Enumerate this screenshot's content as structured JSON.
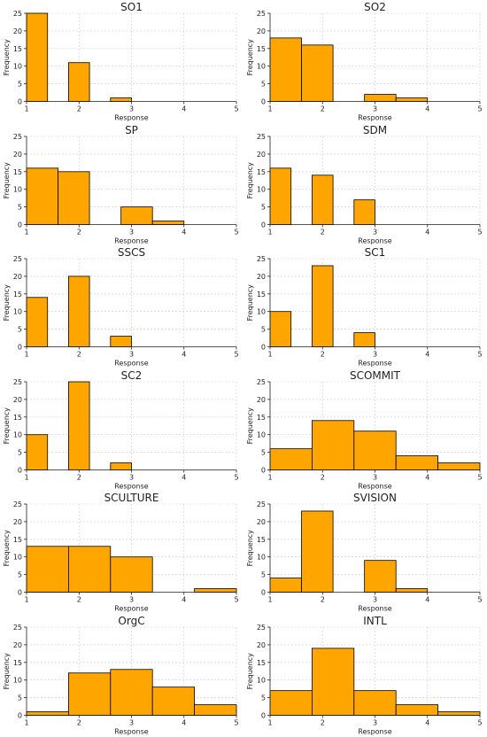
{
  "colors": {
    "bar_fill": "#FFA500",
    "bar_edge": "#000000"
  },
  "chart_data": [
    {
      "type": "bar",
      "title": "SO1",
      "xlabel": "Response",
      "ylabel": "Frequency",
      "xlim": [
        1,
        5
      ],
      "ylim": [
        0,
        25
      ],
      "xticks": [
        1,
        2,
        3,
        4,
        5
      ],
      "yticks": [
        0,
        5,
        10,
        15,
        20,
        25
      ],
      "grid": true,
      "bins": [
        {
          "x0": 1.0,
          "x1": 1.4,
          "value": 25
        },
        {
          "x0": 1.8,
          "x1": 2.2,
          "value": 11
        },
        {
          "x0": 2.6,
          "x1": 3.0,
          "value": 1
        }
      ]
    },
    {
      "type": "bar",
      "title": "SO2",
      "xlabel": "Response",
      "ylabel": "Frequency",
      "xlim": [
        1,
        5
      ],
      "ylim": [
        0,
        25
      ],
      "xticks": [
        1,
        2,
        3,
        4,
        5
      ],
      "yticks": [
        0,
        5,
        10,
        15,
        20,
        25
      ],
      "grid": true,
      "bins": [
        {
          "x0": 1.0,
          "x1": 1.6,
          "value": 18
        },
        {
          "x0": 1.6,
          "x1": 2.2,
          "value": 16
        },
        {
          "x0": 2.8,
          "x1": 3.4,
          "value": 2
        },
        {
          "x0": 3.4,
          "x1": 4.0,
          "value": 1
        }
      ]
    },
    {
      "type": "bar",
      "title": "SP",
      "xlabel": "Response",
      "ylabel": "Frequency",
      "xlim": [
        1,
        5
      ],
      "ylim": [
        0,
        25
      ],
      "xticks": [
        1,
        2,
        3,
        4,
        5
      ],
      "yticks": [
        0,
        5,
        10,
        15,
        20,
        25
      ],
      "grid": true,
      "bins": [
        {
          "x0": 1.0,
          "x1": 1.6,
          "value": 16
        },
        {
          "x0": 1.6,
          "x1": 2.2,
          "value": 15
        },
        {
          "x0": 2.8,
          "x1": 3.4,
          "value": 5
        },
        {
          "x0": 3.4,
          "x1": 4.0,
          "value": 1
        }
      ]
    },
    {
      "type": "bar",
      "title": "SDM",
      "xlabel": "Response",
      "ylabel": "Frequency",
      "xlim": [
        1,
        5
      ],
      "ylim": [
        0,
        25
      ],
      "xticks": [
        1,
        2,
        3,
        4,
        5
      ],
      "yticks": [
        0,
        5,
        10,
        15,
        20,
        25
      ],
      "grid": true,
      "bins": [
        {
          "x0": 1.0,
          "x1": 1.4,
          "value": 16
        },
        {
          "x0": 1.8,
          "x1": 2.2,
          "value": 14
        },
        {
          "x0": 2.6,
          "x1": 3.0,
          "value": 7
        }
      ]
    },
    {
      "type": "bar",
      "title": "SSCS",
      "xlabel": "Response",
      "ylabel": "Frequency",
      "xlim": [
        1,
        5
      ],
      "ylim": [
        0,
        25
      ],
      "xticks": [
        1,
        2,
        3,
        4,
        5
      ],
      "yticks": [
        0,
        5,
        10,
        15,
        20,
        25
      ],
      "grid": true,
      "bins": [
        {
          "x0": 1.0,
          "x1": 1.4,
          "value": 14
        },
        {
          "x0": 1.8,
          "x1": 2.2,
          "value": 20
        },
        {
          "x0": 2.6,
          "x1": 3.0,
          "value": 3
        }
      ]
    },
    {
      "type": "bar",
      "title": "SC1",
      "xlabel": "Response",
      "ylabel": "Frequency",
      "xlim": [
        1,
        5
      ],
      "ylim": [
        0,
        25
      ],
      "xticks": [
        1,
        2,
        3,
        4,
        5
      ],
      "yticks": [
        0,
        5,
        10,
        15,
        20,
        25
      ],
      "grid": true,
      "bins": [
        {
          "x0": 1.0,
          "x1": 1.4,
          "value": 10
        },
        {
          "x0": 1.8,
          "x1": 2.2,
          "value": 23
        },
        {
          "x0": 2.6,
          "x1": 3.0,
          "value": 4
        }
      ]
    },
    {
      "type": "bar",
      "title": "SC2",
      "xlabel": "Response",
      "ylabel": "Frequency",
      "xlim": [
        1,
        5
      ],
      "ylim": [
        0,
        25
      ],
      "xticks": [
        1,
        2,
        3,
        4,
        5
      ],
      "yticks": [
        0,
        5,
        10,
        15,
        20,
        25
      ],
      "grid": true,
      "bins": [
        {
          "x0": 1.0,
          "x1": 1.4,
          "value": 10
        },
        {
          "x0": 1.8,
          "x1": 2.2,
          "value": 25
        },
        {
          "x0": 2.6,
          "x1": 3.0,
          "value": 2
        }
      ]
    },
    {
      "type": "bar",
      "title": "SCOMMIT",
      "xlabel": "Response",
      "ylabel": "Frequency",
      "xlim": [
        1,
        5
      ],
      "ylim": [
        0,
        25
      ],
      "xticks": [
        1,
        2,
        3,
        4,
        5
      ],
      "yticks": [
        0,
        5,
        10,
        15,
        20,
        25
      ],
      "grid": true,
      "bins": [
        {
          "x0": 1.0,
          "x1": 1.8,
          "value": 6
        },
        {
          "x0": 1.8,
          "x1": 2.6,
          "value": 14
        },
        {
          "x0": 2.6,
          "x1": 3.4,
          "value": 11
        },
        {
          "x0": 3.4,
          "x1": 4.2,
          "value": 4
        },
        {
          "x0": 4.2,
          "x1": 5.0,
          "value": 2
        }
      ]
    },
    {
      "type": "bar",
      "title": "SCULTURE",
      "xlabel": "Response",
      "ylabel": "Frequency",
      "xlim": [
        1,
        5
      ],
      "ylim": [
        0,
        25
      ],
      "xticks": [
        1,
        2,
        3,
        4,
        5
      ],
      "yticks": [
        0,
        5,
        10,
        15,
        20,
        25
      ],
      "grid": true,
      "bins": [
        {
          "x0": 1.0,
          "x1": 1.8,
          "value": 13
        },
        {
          "x0": 1.8,
          "x1": 2.6,
          "value": 13
        },
        {
          "x0": 2.6,
          "x1": 3.4,
          "value": 10
        },
        {
          "x0": 4.2,
          "x1": 5.0,
          "value": 1
        }
      ]
    },
    {
      "type": "bar",
      "title": "SVISION",
      "xlabel": "Response",
      "ylabel": "Frequency",
      "xlim": [
        1,
        5
      ],
      "ylim": [
        0,
        25
      ],
      "xticks": [
        1,
        2,
        3,
        4,
        5
      ],
      "yticks": [
        0,
        5,
        10,
        15,
        20,
        25
      ],
      "grid": true,
      "bins": [
        {
          "x0": 1.0,
          "x1": 1.6,
          "value": 4
        },
        {
          "x0": 1.6,
          "x1": 2.2,
          "value": 23
        },
        {
          "x0": 2.8,
          "x1": 3.4,
          "value": 9
        },
        {
          "x0": 3.4,
          "x1": 4.0,
          "value": 1
        }
      ]
    },
    {
      "type": "bar",
      "title": "OrgC",
      "xlabel": "Response",
      "ylabel": "Frequency",
      "xlim": [
        1,
        5
      ],
      "ylim": [
        0,
        25
      ],
      "xticks": [
        1,
        2,
        3,
        4,
        5
      ],
      "yticks": [
        0,
        5,
        10,
        15,
        20,
        25
      ],
      "grid": true,
      "bins": [
        {
          "x0": 1.0,
          "x1": 1.8,
          "value": 1
        },
        {
          "x0": 1.8,
          "x1": 2.6,
          "value": 12
        },
        {
          "x0": 2.6,
          "x1": 3.4,
          "value": 13
        },
        {
          "x0": 3.4,
          "x1": 4.2,
          "value": 8
        },
        {
          "x0": 4.2,
          "x1": 5.0,
          "value": 3
        }
      ]
    },
    {
      "type": "bar",
      "title": "INTL",
      "xlabel": "Response",
      "ylabel": "Frequency",
      "xlim": [
        1,
        5
      ],
      "ylim": [
        0,
        25
      ],
      "xticks": [
        1,
        2,
        3,
        4,
        5
      ],
      "yticks": [
        0,
        5,
        10,
        15,
        20,
        25
      ],
      "grid": true,
      "bins": [
        {
          "x0": 1.0,
          "x1": 1.8,
          "value": 7
        },
        {
          "x0": 1.8,
          "x1": 2.6,
          "value": 19
        },
        {
          "x0": 2.6,
          "x1": 3.4,
          "value": 7
        },
        {
          "x0": 3.4,
          "x1": 4.2,
          "value": 3
        },
        {
          "x0": 4.2,
          "x1": 5.0,
          "value": 1
        }
      ]
    }
  ]
}
